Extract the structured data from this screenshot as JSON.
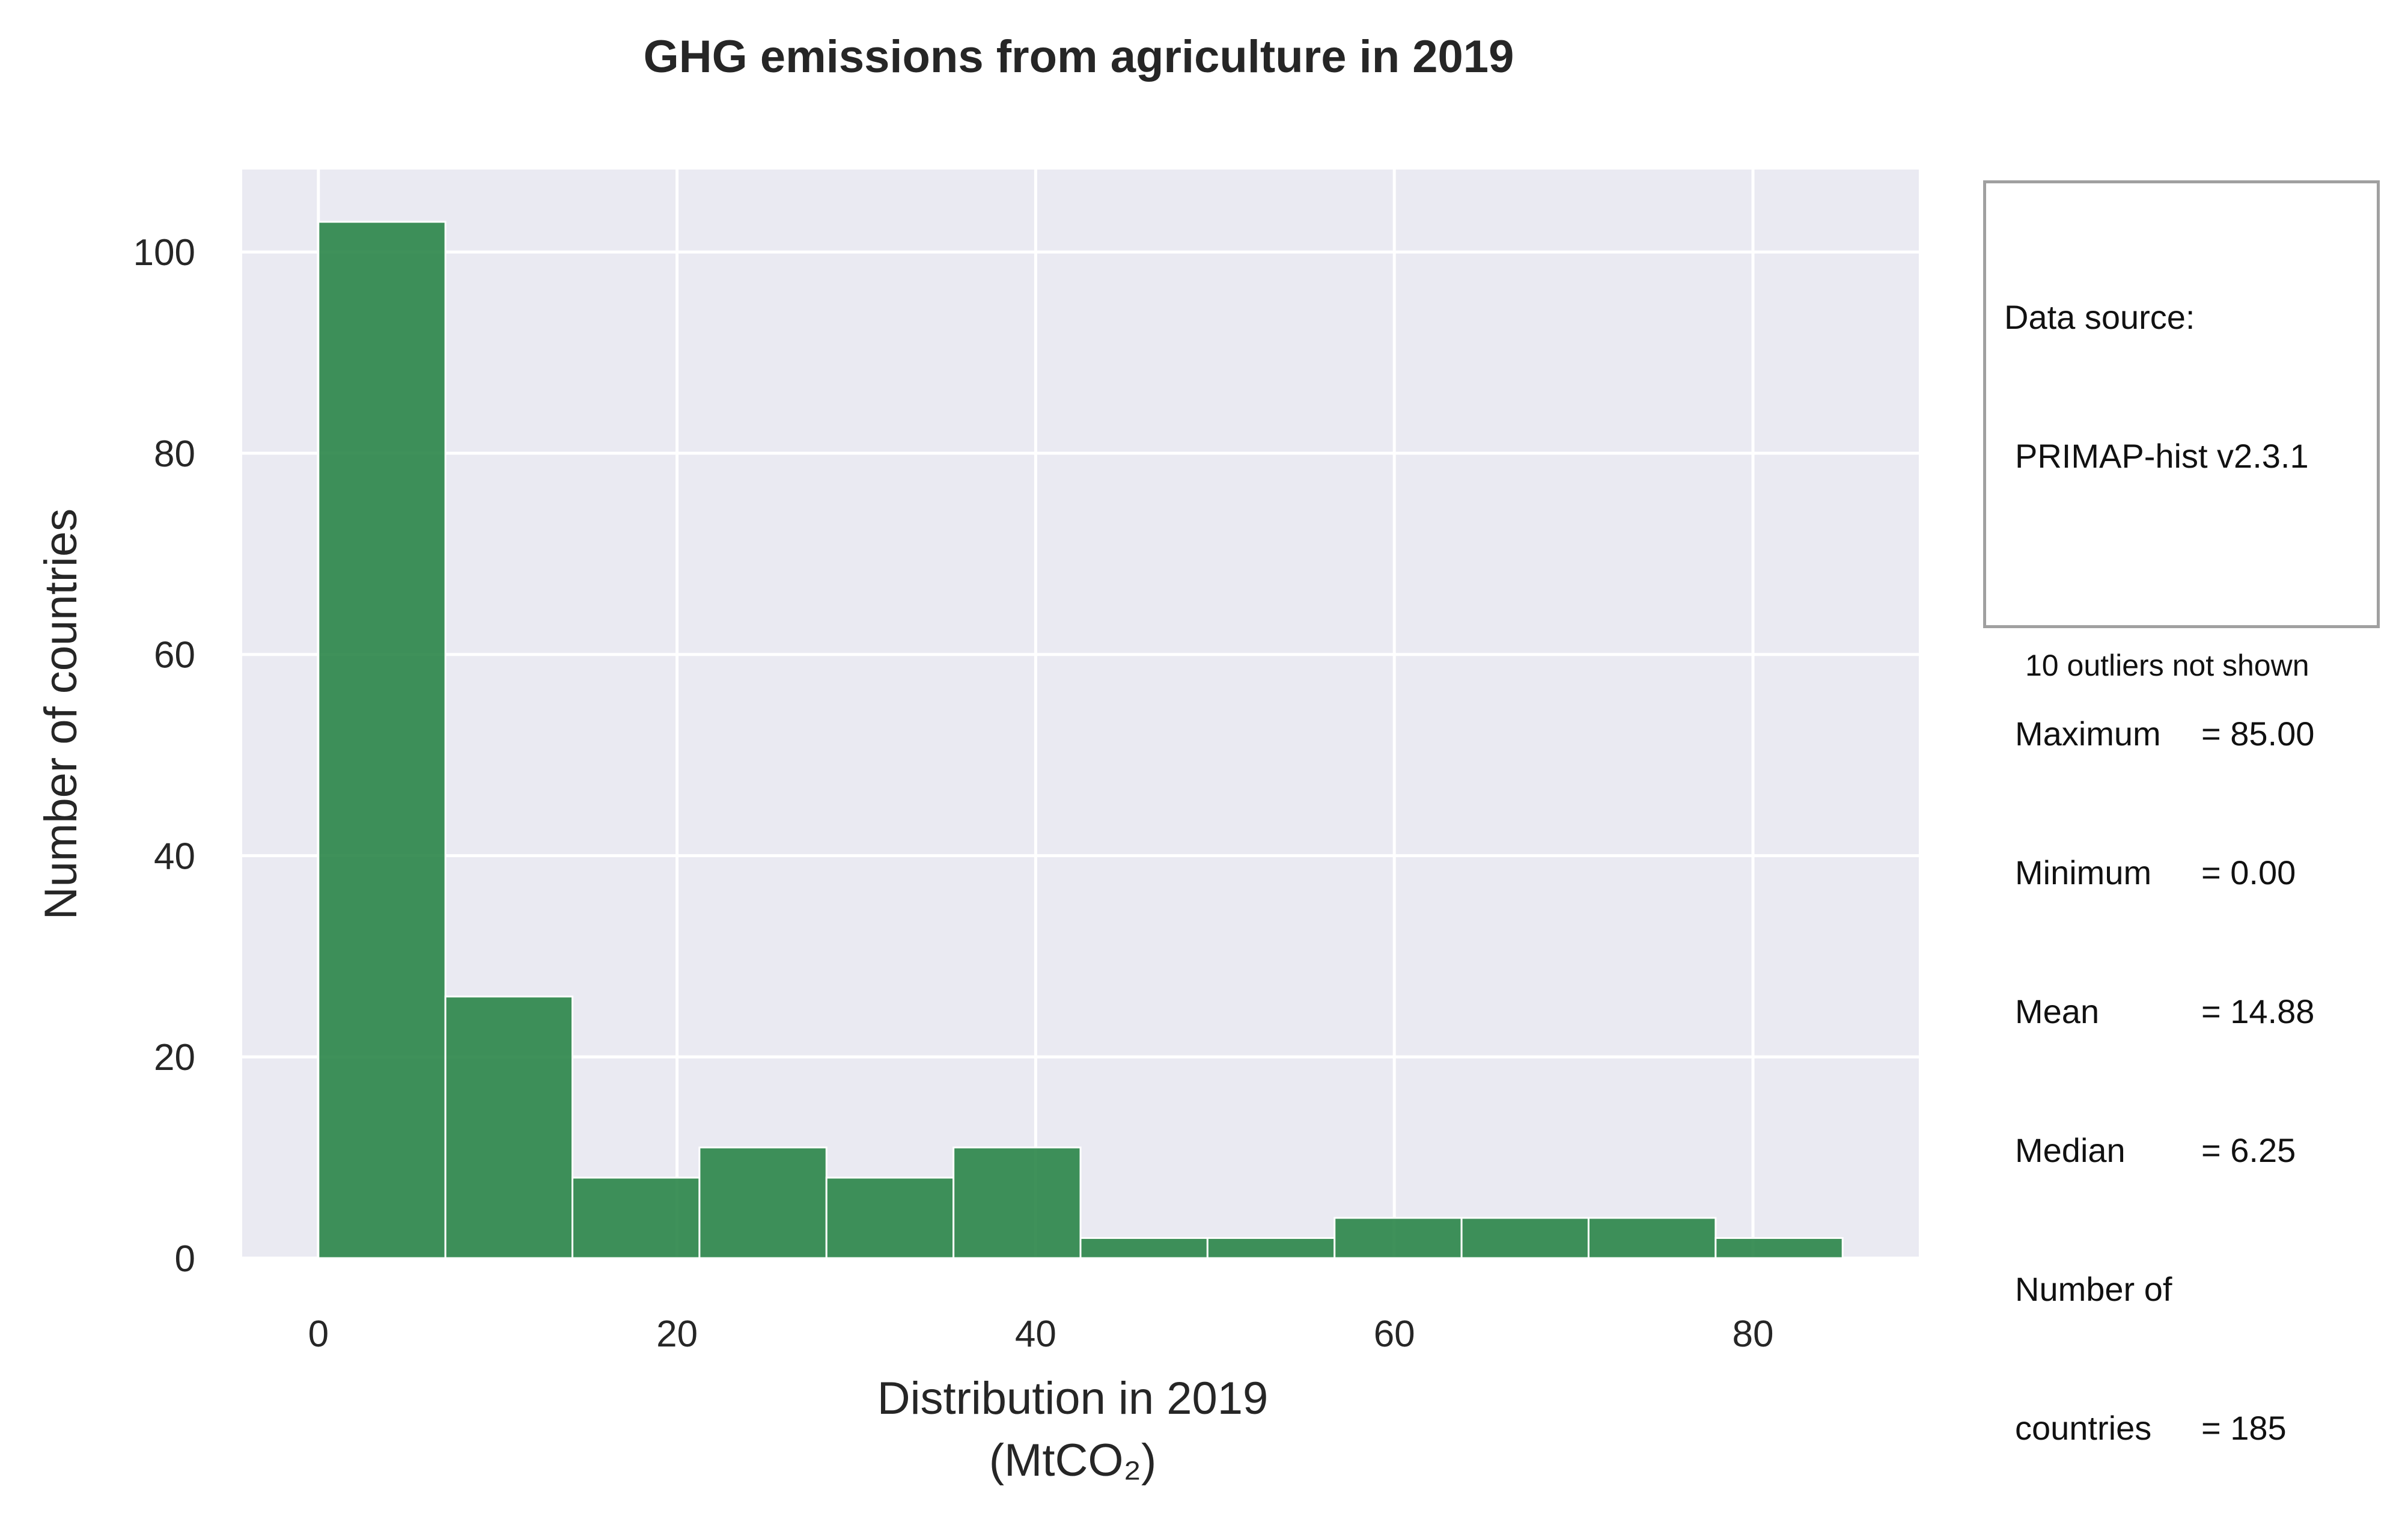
{
  "chart_data": {
    "type": "bar",
    "title": "GHG emissions from agriculture in 2019",
    "xlabel": "Distribution in 2019",
    "xlabel_unit": "(MtCO₂)",
    "ylabel": "Number of countries",
    "bin_edges": [
      0,
      7.083,
      14.167,
      21.25,
      28.333,
      35.417,
      42.5,
      49.583,
      56.667,
      63.75,
      70.833,
      77.917,
      85
    ],
    "values": [
      103,
      26,
      8,
      11,
      8,
      11,
      2,
      2,
      4,
      4,
      4,
      2
    ],
    "xlim": [
      -4.25,
      89.25
    ],
    "ylim": [
      0,
      108.2
    ],
    "xticks": [
      0,
      20,
      40,
      60,
      80
    ],
    "yticks": [
      0,
      20,
      40,
      60,
      80,
      100
    ],
    "grid": true,
    "bar_color": "#2a8548",
    "background_color": "#eaeaf2"
  },
  "info_box": {
    "source_label": "Data source:",
    "source_value": "PRIMAP-hist v2.3.1",
    "stats": [
      {
        "key": "Maximum",
        "value": "= 85.00"
      },
      {
        "key": "Minimum",
        "value": "= 0.00"
      },
      {
        "key": "Mean",
        "value": "= 14.88"
      },
      {
        "key": "Median",
        "value": "= 6.25"
      }
    ],
    "count_label_1": "Number of",
    "count_label_2": "countries",
    "count_value": "= 185",
    "outliers_note": "10 outliers not shown"
  }
}
